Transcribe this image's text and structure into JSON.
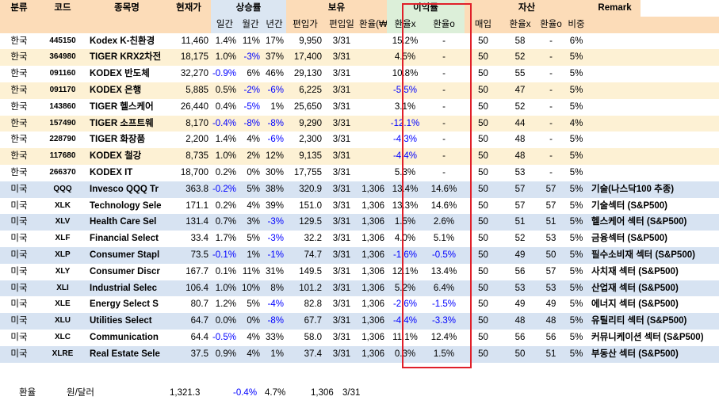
{
  "header": {
    "top": {
      "category": "분류",
      "code": "코드",
      "name": "종목명",
      "price": "현재가",
      "return": "상승률",
      "holding": "보유",
      "profit": "이익률",
      "asset": "자산",
      "remark": "Remark"
    },
    "sub": {
      "daily": "일간",
      "monthly": "월간",
      "yearly": "년간",
      "buy_price": "편입가",
      "buy_date": "편입일",
      "fx": "환율(₩)",
      "profit_x": "환율x",
      "profit_o": "환율o",
      "buy": "매입",
      "asset_x": "환율x",
      "asset_o": "환율o",
      "weight": "비중"
    }
  },
  "rows": [
    {
      "group": "kr",
      "cat": "한국",
      "code": "445150",
      "name": "Kodex K-친환경",
      "price": "11,460",
      "d": "1.4%",
      "m": "11%",
      "y": "17%",
      "bp": "9,950",
      "bd": "3/31",
      "fx": "",
      "px": "15.2%",
      "po": "-",
      "buy": "50",
      "ax": "58",
      "ao": "-",
      "w": "6%",
      "remark": ""
    },
    {
      "group": "kr",
      "cat": "한국",
      "code": "364980",
      "name": "TIGER KRX2차전",
      "price": "18,175",
      "d": "1.0%",
      "m": "-3%",
      "y": "37%",
      "bp": "17,400",
      "bd": "3/31",
      "fx": "",
      "px": "4.5%",
      "po": "-",
      "buy": "50",
      "ax": "52",
      "ao": "-",
      "w": "5%",
      "remark": ""
    },
    {
      "group": "kr",
      "cat": "한국",
      "code": "091160",
      "name": "KODEX 반도체",
      "price": "32,270",
      "d": "-0.9%",
      "m": "6%",
      "y": "46%",
      "bp": "29,130",
      "bd": "3/31",
      "fx": "",
      "px": "10.8%",
      "po": "-",
      "buy": "50",
      "ax": "55",
      "ao": "-",
      "w": "5%",
      "remark": ""
    },
    {
      "group": "kr",
      "cat": "한국",
      "code": "091170",
      "name": "KODEX 은행",
      "price": "5,885",
      "d": "0.5%",
      "m": "-2%",
      "y": "-6%",
      "bp": "6,225",
      "bd": "3/31",
      "fx": "",
      "px": "-5.5%",
      "po": "-",
      "buy": "50",
      "ax": "47",
      "ao": "-",
      "w": "5%",
      "remark": ""
    },
    {
      "group": "kr",
      "cat": "한국",
      "code": "143860",
      "name": "TIGER 헬스케어",
      "price": "26,440",
      "d": "0.4%",
      "m": "-5%",
      "y": "1%",
      "bp": "25,650",
      "bd": "3/31",
      "fx": "",
      "px": "3.1%",
      "po": "-",
      "buy": "50",
      "ax": "52",
      "ao": "-",
      "w": "5%",
      "remark": ""
    },
    {
      "group": "kr",
      "cat": "한국",
      "code": "157490",
      "name": "TIGER 소프트웨",
      "price": "8,170",
      "d": "-0.4%",
      "m": "-8%",
      "y": "-8%",
      "bp": "9,290",
      "bd": "3/31",
      "fx": "",
      "px": "-12.1%",
      "po": "-",
      "buy": "50",
      "ax": "44",
      "ao": "-",
      "w": "4%",
      "remark": ""
    },
    {
      "group": "kr",
      "cat": "한국",
      "code": "228790",
      "name": "TIGER 화장품",
      "price": "2,200",
      "d": "1.4%",
      "m": "4%",
      "y": "-6%",
      "bp": "2,300",
      "bd": "3/31",
      "fx": "",
      "px": "-4.3%",
      "po": "-",
      "buy": "50",
      "ax": "48",
      "ao": "-",
      "w": "5%",
      "remark": ""
    },
    {
      "group": "kr",
      "cat": "한국",
      "code": "117680",
      "name": "KODEX 철강",
      "price": "8,735",
      "d": "1.0%",
      "m": "2%",
      "y": "12%",
      "bp": "9,135",
      "bd": "3/31",
      "fx": "",
      "px": "-4.4%",
      "po": "-",
      "buy": "50",
      "ax": "48",
      "ao": "-",
      "w": "5%",
      "remark": ""
    },
    {
      "group": "kr",
      "cat": "한국",
      "code": "266370",
      "name": "KODEX IT",
      "price": "18,700",
      "d": "0.2%",
      "m": "0%",
      "y": "30%",
      "bp": "17,755",
      "bd": "3/31",
      "fx": "",
      "px": "5.3%",
      "po": "-",
      "buy": "50",
      "ax": "53",
      "ao": "-",
      "w": "5%",
      "remark": ""
    },
    {
      "group": "us",
      "cat": "미국",
      "code": "QQQ",
      "name": "Invesco QQQ Tr",
      "price": "363.8",
      "d": "-0.2%",
      "m": "5%",
      "y": "38%",
      "bp": "320.9",
      "bd": "3/31",
      "fx": "1,306",
      "px": "13.4%",
      "po": "14.6%",
      "buy": "50",
      "ax": "57",
      "ao": "57",
      "w": "5%",
      "remark": "기술(나스닥100 추종)"
    },
    {
      "group": "us",
      "cat": "미국",
      "code": "XLK",
      "name": "Technology Sele",
      "price": "171.1",
      "d": "0.2%",
      "m": "4%",
      "y": "39%",
      "bp": "151.0",
      "bd": "3/31",
      "fx": "1,306",
      "px": "13.3%",
      "po": "14.6%",
      "buy": "50",
      "ax": "57",
      "ao": "57",
      "w": "5%",
      "remark": "기술섹터 (S&P500)"
    },
    {
      "group": "us",
      "cat": "미국",
      "code": "XLV",
      "name": "Health Care Sel",
      "price": "131.4",
      "d": "0.7%",
      "m": "3%",
      "y": "-3%",
      "bp": "129.5",
      "bd": "3/31",
      "fx": "1,306",
      "px": "1.5%",
      "po": "2.6%",
      "buy": "50",
      "ax": "51",
      "ao": "51",
      "w": "5%",
      "remark": "헬스케어 섹터 (S&P500)"
    },
    {
      "group": "us",
      "cat": "미국",
      "code": "XLF",
      "name": "Financial Select",
      "price": "33.4",
      "d": "1.7%",
      "m": "5%",
      "y": "-3%",
      "bp": "32.2",
      "bd": "3/31",
      "fx": "1,306",
      "px": "4.0%",
      "po": "5.1%",
      "buy": "50",
      "ax": "52",
      "ao": "53",
      "w": "5%",
      "remark": "금융섹터 (S&P500)"
    },
    {
      "group": "us",
      "cat": "미국",
      "code": "XLP",
      "name": "Consumer Stapl",
      "price": "73.5",
      "d": "-0.1%",
      "m": "1%",
      "y": "-1%",
      "bp": "74.7",
      "bd": "3/31",
      "fx": "1,306",
      "px": "-1.6%",
      "po": "-0.5%",
      "buy": "50",
      "ax": "49",
      "ao": "50",
      "w": "5%",
      "remark": "필수소비재 섹터 (S&P500)"
    },
    {
      "group": "us",
      "cat": "미국",
      "code": "XLY",
      "name": "Consumer Discr",
      "price": "167.7",
      "d": "0.1%",
      "m": "11%",
      "y": "31%",
      "bp": "149.5",
      "bd": "3/31",
      "fx": "1,306",
      "px": "12.1%",
      "po": "13.4%",
      "buy": "50",
      "ax": "56",
      "ao": "57",
      "w": "5%",
      "remark": "사치재 섹터 (S&P500)"
    },
    {
      "group": "us",
      "cat": "미국",
      "code": "XLI",
      "name": "Industrial Selec",
      "price": "106.4",
      "d": "1.0%",
      "m": "10%",
      "y": "8%",
      "bp": "101.2",
      "bd": "3/31",
      "fx": "1,306",
      "px": "5.2%",
      "po": "6.4%",
      "buy": "50",
      "ax": "53",
      "ao": "53",
      "w": "5%",
      "remark": "산업재 섹터 (S&P500)"
    },
    {
      "group": "us",
      "cat": "미국",
      "code": "XLE",
      "name": "Energy Select S",
      "price": "80.7",
      "d": "1.2%",
      "m": "5%",
      "y": "-4%",
      "bp": "82.8",
      "bd": "3/31",
      "fx": "1,306",
      "px": "-2.6%",
      "po": "-1.5%",
      "buy": "50",
      "ax": "49",
      "ao": "49",
      "w": "5%",
      "remark": "에너지 섹터 (S&P500)"
    },
    {
      "group": "us",
      "cat": "미국",
      "code": "XLU",
      "name": "Utilities Select",
      "price": "64.7",
      "d": "0.0%",
      "m": "0%",
      "y": "-8%",
      "bp": "67.7",
      "bd": "3/31",
      "fx": "1,306",
      "px": "-4.4%",
      "po": "-3.3%",
      "buy": "50",
      "ax": "48",
      "ao": "48",
      "w": "5%",
      "remark": "유틸리티 섹터 (S&P500)"
    },
    {
      "group": "us",
      "cat": "미국",
      "code": "XLC",
      "name": "Communication",
      "price": "64.4",
      "d": "-0.5%",
      "m": "4%",
      "y": "33%",
      "bp": "58.0",
      "bd": "3/31",
      "fx": "1,306",
      "px": "11.1%",
      "po": "12.4%",
      "buy": "50",
      "ax": "56",
      "ao": "56",
      "w": "5%",
      "remark": "커뮤니케이션 섹터 (S&P500)"
    },
    {
      "group": "us",
      "cat": "미국",
      "code": "XLRE",
      "name": "Real Estate Sele",
      "price": "37.5",
      "d": "0.9%",
      "m": "4%",
      "y": "1%",
      "bp": "37.4",
      "bd": "3/31",
      "fx": "1,306",
      "px": "0.3%",
      "po": "1.5%",
      "buy": "50",
      "ax": "50",
      "ao": "51",
      "w": "5%",
      "remark": "부동산 섹터 (S&P500)"
    }
  ],
  "footer": {
    "label": "환율",
    "unit": "원/달러",
    "rate": "1,321.3",
    "daily": "-0.4%",
    "monthly": "4.7%",
    "base_rate": "1,306",
    "base_date": "3/31"
  },
  "colors": {
    "header": "#fcdcb8",
    "kr_row": "#fdf1d4",
    "us_row": "#d7e3f2",
    "profit_header": "#dcefd9",
    "negative": "#0000ff",
    "highlight_box": "#e0202a"
  }
}
